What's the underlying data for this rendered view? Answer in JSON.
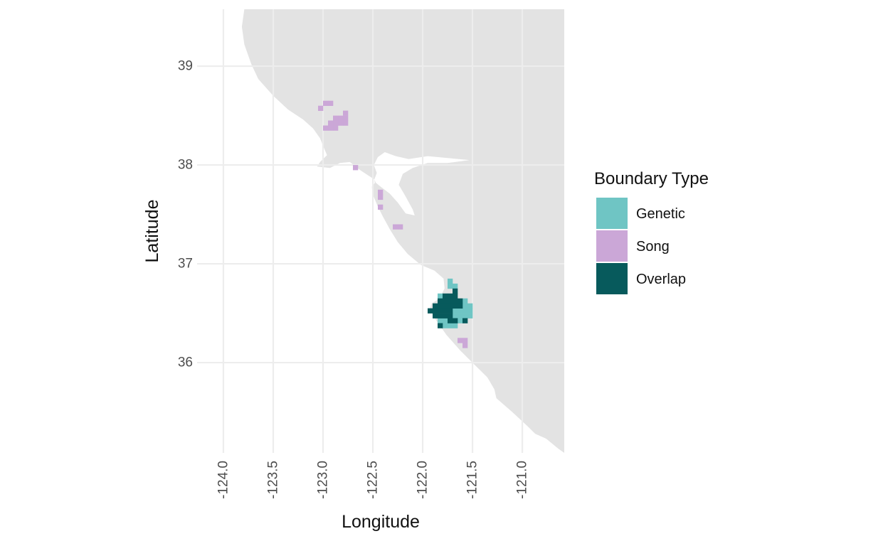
{
  "figure_title": "",
  "axes": {
    "x_title": "Longitude",
    "y_title": "Latitude",
    "x_tick_labels": [
      "-124.0",
      "-123.5",
      "-123.0",
      "-122.5",
      "-122.0",
      "-121.5",
      "-121.0"
    ],
    "x_tick_values": [
      -124.0,
      -123.5,
      -123.0,
      -122.5,
      -122.0,
      -121.5,
      -121.0
    ],
    "y_tick_labels": [
      "39",
      "38",
      "37",
      "36"
    ],
    "y_tick_values": [
      39,
      38,
      37,
      36
    ]
  },
  "legend": {
    "title": "Boundary Type",
    "entries": [
      {
        "label": "Genetic",
        "color": "#6fc5c4"
      },
      {
        "label": "Song",
        "color": "#cba7d7"
      },
      {
        "label": "Overlap",
        "color": "#075a5c"
      }
    ]
  },
  "colors": {
    "background": "#ffffff",
    "land": "#e3e3e3",
    "water": "#ffffff",
    "gridline": "#ededed",
    "tick_text": "#4d4d4d",
    "title_text": "#111111"
  },
  "chart_data": {
    "type": "heatmap",
    "subtype": "geographic-tile-map",
    "title": "",
    "xlabel": "Longitude",
    "ylabel": "Latitude",
    "xlim": [
      -124.264,
      -120.579
    ],
    "ylim": [
      35.087,
      39.576
    ],
    "grid": "major",
    "x_breaks": [
      -124.0,
      -123.5,
      -123.0,
      -122.5,
      -122.0,
      -121.5,
      -121.0
    ],
    "y_breaks": [
      39,
      38,
      37,
      36
    ],
    "legend_position": "right",
    "cell_size_deg": 0.05,
    "series": [
      {
        "name": "Genetic",
        "color": "#6fc5c4",
        "cells": [
          [
            -121.75,
            36.8
          ],
          [
            -121.75,
            36.75
          ],
          [
            -121.7,
            36.75
          ],
          [
            -121.85,
            36.65
          ],
          [
            -121.6,
            36.6
          ],
          [
            -121.6,
            36.55
          ],
          [
            -121.55,
            36.55
          ],
          [
            -121.7,
            36.5
          ],
          [
            -121.65,
            36.5
          ],
          [
            -121.6,
            36.5
          ],
          [
            -121.55,
            36.5
          ],
          [
            -121.7,
            36.45
          ],
          [
            -121.65,
            36.45
          ],
          [
            -121.6,
            36.45
          ],
          [
            -121.55,
            36.45
          ],
          [
            -121.85,
            36.4
          ],
          [
            -121.8,
            36.4
          ],
          [
            -121.65,
            36.4
          ],
          [
            -121.8,
            36.35
          ],
          [
            -121.75,
            36.35
          ],
          [
            -121.7,
            36.35
          ]
        ]
      },
      {
        "name": "Song",
        "color": "#cba7d7",
        "cells": [
          [
            -123.05,
            38.55
          ],
          [
            -123.0,
            38.6
          ],
          [
            -122.95,
            38.6
          ],
          [
            -122.8,
            38.5
          ],
          [
            -122.8,
            38.45
          ],
          [
            -122.8,
            38.4
          ],
          [
            -122.85,
            38.45
          ],
          [
            -122.85,
            38.4
          ],
          [
            -122.9,
            38.45
          ],
          [
            -122.9,
            38.4
          ],
          [
            -122.9,
            38.35
          ],
          [
            -122.95,
            38.4
          ],
          [
            -122.95,
            38.35
          ],
          [
            -123.0,
            38.35
          ],
          [
            -122.7,
            37.95
          ],
          [
            -122.45,
            37.7
          ],
          [
            -122.45,
            37.65
          ],
          [
            -122.45,
            37.55
          ],
          [
            -122.3,
            37.35
          ],
          [
            -122.25,
            37.35
          ],
          [
            -121.65,
            36.2
          ],
          [
            -121.6,
            36.2
          ],
          [
            -121.6,
            36.15
          ]
        ]
      },
      {
        "name": "Overlap",
        "color": "#075a5c",
        "cells": [
          [
            -121.7,
            36.7
          ],
          [
            -121.8,
            36.65
          ],
          [
            -121.75,
            36.65
          ],
          [
            -121.7,
            36.65
          ],
          [
            -121.85,
            36.6
          ],
          [
            -121.8,
            36.6
          ],
          [
            -121.75,
            36.6
          ],
          [
            -121.7,
            36.6
          ],
          [
            -121.65,
            36.6
          ],
          [
            -121.9,
            36.55
          ],
          [
            -121.85,
            36.55
          ],
          [
            -121.8,
            36.55
          ],
          [
            -121.75,
            36.55
          ],
          [
            -121.7,
            36.55
          ],
          [
            -121.65,
            36.55
          ],
          [
            -121.95,
            36.5
          ],
          [
            -121.9,
            36.5
          ],
          [
            -121.85,
            36.5
          ],
          [
            -121.8,
            36.5
          ],
          [
            -121.75,
            36.5
          ],
          [
            -121.9,
            36.45
          ],
          [
            -121.85,
            36.45
          ],
          [
            -121.8,
            36.45
          ],
          [
            -121.75,
            36.45
          ],
          [
            -121.75,
            36.4
          ],
          [
            -121.7,
            36.4
          ],
          [
            -121.6,
            36.4
          ],
          [
            -121.85,
            36.35
          ]
        ]
      }
    ],
    "basemap": {
      "land_name": "california-coast",
      "coast_polygon": [
        [
          -123.79,
          39.576
        ],
        [
          -123.815,
          39.4
        ],
        [
          -123.79,
          39.22
        ],
        [
          -123.72,
          39.02
        ],
        [
          -123.65,
          38.87
        ],
        [
          -123.5,
          38.7
        ],
        [
          -123.35,
          38.56
        ],
        [
          -123.2,
          38.46
        ],
        [
          -123.1,
          38.37
        ],
        [
          -123.03,
          38.27
        ],
        [
          -122.99,
          38.17
        ],
        [
          -122.96,
          38.1
        ],
        [
          -123.03,
          38.03
        ],
        [
          -123.06,
          37.985
        ],
        [
          -122.93,
          37.97
        ],
        [
          -122.83,
          38.02
        ],
        [
          -122.73,
          38.03
        ],
        [
          -122.63,
          37.95
        ],
        [
          -122.54,
          37.89
        ],
        [
          -122.485,
          37.855
        ],
        [
          -122.48,
          37.82
        ],
        [
          -122.51,
          37.78
        ],
        [
          -122.5,
          37.7
        ],
        [
          -122.45,
          37.58
        ],
        [
          -122.4,
          37.48
        ],
        [
          -122.33,
          37.35
        ],
        [
          -122.25,
          37.22
        ],
        [
          -122.15,
          37.1
        ],
        [
          -122.02,
          36.99
        ],
        [
          -121.88,
          36.93
        ],
        [
          -121.79,
          36.85
        ],
        [
          -121.78,
          36.75
        ],
        [
          -121.83,
          36.65
        ],
        [
          -121.91,
          36.6
        ],
        [
          -121.93,
          36.54
        ],
        [
          -121.86,
          36.42
        ],
        [
          -121.76,
          36.28
        ],
        [
          -121.62,
          36.12
        ],
        [
          -121.47,
          35.97
        ],
        [
          -121.35,
          35.85
        ],
        [
          -121.28,
          35.73
        ],
        [
          -121.26,
          35.64
        ],
        [
          -121.1,
          35.5
        ],
        [
          -120.95,
          35.36
        ],
        [
          -120.87,
          35.28
        ],
        [
          -120.76,
          35.23
        ],
        [
          -120.64,
          35.13
        ],
        [
          -120.579,
          35.087
        ],
        [
          -120.579,
          39.576
        ]
      ],
      "bay_polygon": [
        [
          -122.485,
          37.855
        ],
        [
          -122.46,
          37.92
        ],
        [
          -122.49,
          38.0
        ],
        [
          -122.45,
          38.08
        ],
        [
          -122.38,
          38.13
        ],
        [
          -122.27,
          38.09
        ],
        [
          -122.14,
          38.06
        ],
        [
          -121.95,
          38.09
        ],
        [
          -121.75,
          38.07
        ],
        [
          -121.53,
          38.05
        ],
        [
          -121.75,
          38.02
        ],
        [
          -121.95,
          38.02
        ],
        [
          -122.1,
          37.97
        ],
        [
          -122.2,
          37.91
        ],
        [
          -122.24,
          37.8
        ],
        [
          -122.17,
          37.68
        ],
        [
          -122.1,
          37.55
        ],
        [
          -122.08,
          37.49
        ],
        [
          -122.17,
          37.51
        ],
        [
          -122.25,
          37.62
        ],
        [
          -122.33,
          37.71
        ],
        [
          -122.42,
          37.78
        ],
        [
          -122.47,
          37.82
        ]
      ]
    }
  }
}
